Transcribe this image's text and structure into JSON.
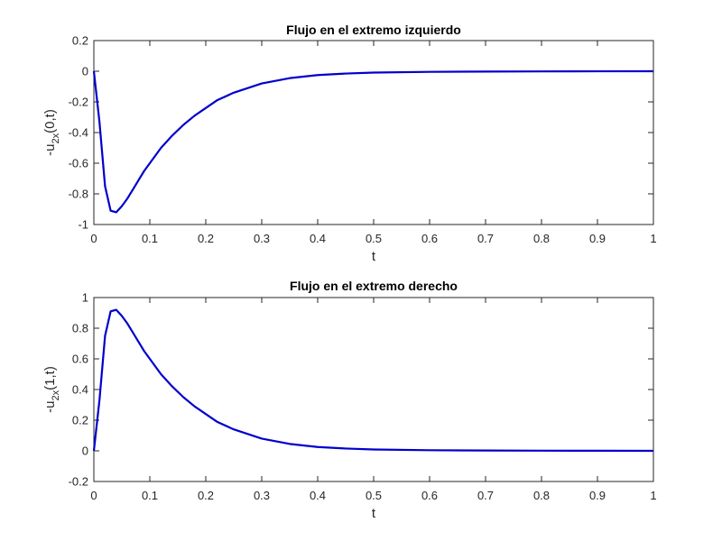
{
  "chart_data": [
    {
      "type": "line",
      "title": "Flujo en el extremo izquierdo",
      "xlabel": "t",
      "ylabel": {
        "prefix": "-u",
        "sub": "2x",
        "suffix": "(0,t)"
      },
      "xlim": [
        0,
        1
      ],
      "ylim": [
        -1,
        0.2
      ],
      "xticks": [
        "0",
        "0.1",
        "0.2",
        "0.3",
        "0.4",
        "0.5",
        "0.6",
        "0.7",
        "0.8",
        "0.9",
        "1"
      ],
      "yticks": [
        "-1",
        "-0.8",
        "-0.6",
        "-0.4",
        "-0.2",
        "0",
        "0.2"
      ],
      "grid": false,
      "color": "#0000CC",
      "series": [
        {
          "x": [
            0,
            0.01,
            0.02,
            0.03,
            0.04,
            0.05,
            0.06,
            0.07,
            0.08,
            0.09,
            0.1,
            0.12,
            0.14,
            0.16,
            0.18,
            0.2,
            0.22,
            0.25,
            0.3,
            0.35,
            0.4,
            0.45,
            0.5,
            0.6,
            0.7,
            0.8,
            0.9,
            1.0
          ],
          "y": [
            0,
            -0.33,
            -0.75,
            -0.91,
            -0.92,
            -0.88,
            -0.83,
            -0.77,
            -0.71,
            -0.65,
            -0.6,
            -0.5,
            -0.42,
            -0.35,
            -0.29,
            -0.24,
            -0.19,
            -0.14,
            -0.08,
            -0.045,
            -0.025,
            -0.015,
            -0.009,
            -0.004,
            -0.002,
            -0.001,
            -0.0005,
            0
          ]
        }
      ]
    },
    {
      "type": "line",
      "title": "Flujo en el extremo derecho",
      "xlabel": "t",
      "ylabel": {
        "prefix": "-u",
        "sub": "2x",
        "suffix": "(1,t)"
      },
      "xlim": [
        0,
        1
      ],
      "ylim": [
        -0.2,
        1
      ],
      "xticks": [
        "0",
        "0.1",
        "0.2",
        "0.3",
        "0.4",
        "0.5",
        "0.6",
        "0.7",
        "0.8",
        "0.9",
        "1"
      ],
      "yticks": [
        "-0.2",
        "0",
        "0.2",
        "0.4",
        "0.6",
        "0.8",
        "1"
      ],
      "grid": false,
      "color": "#0000CC",
      "series": [
        {
          "x": [
            0,
            0.01,
            0.02,
            0.03,
            0.04,
            0.05,
            0.06,
            0.07,
            0.08,
            0.09,
            0.1,
            0.12,
            0.14,
            0.16,
            0.18,
            0.2,
            0.22,
            0.25,
            0.3,
            0.35,
            0.4,
            0.45,
            0.5,
            0.6,
            0.7,
            0.8,
            0.9,
            1.0
          ],
          "y": [
            0,
            0.33,
            0.75,
            0.91,
            0.92,
            0.88,
            0.83,
            0.77,
            0.71,
            0.65,
            0.6,
            0.5,
            0.42,
            0.35,
            0.29,
            0.24,
            0.19,
            0.14,
            0.08,
            0.045,
            0.025,
            0.015,
            0.009,
            0.004,
            0.002,
            0.001,
            0.0005,
            0
          ]
        }
      ]
    }
  ]
}
